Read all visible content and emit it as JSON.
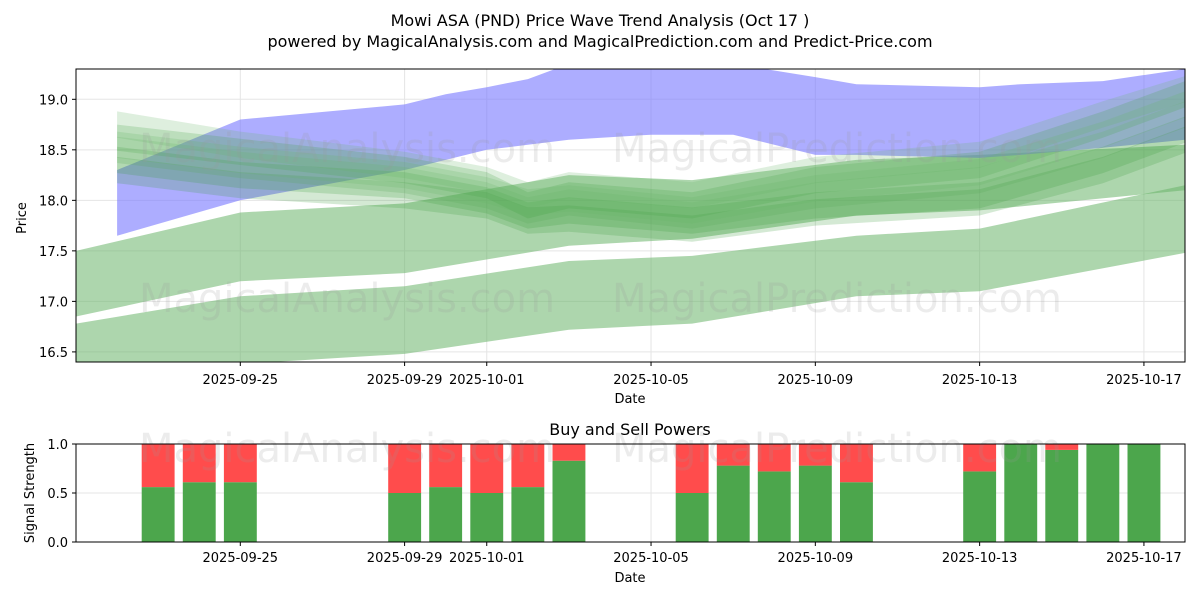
{
  "title_line1": "Mowi ASA (PND) Price Wave Trend Analysis (Oct 17 )",
  "title_line2": "powered by MagicalAnalysis.com and MagicalPrediction.com and Predict-Price.com",
  "watermarks": [
    "MagicalAnalysis.com",
    "MagicalPrediction.com"
  ],
  "chart_data": [
    {
      "type": "area",
      "title": "",
      "xlabel": "Date",
      "ylabel": "Price",
      "x_range": [
        "2025-09-21",
        "2025-10-18"
      ],
      "ylim": [
        16.4,
        19.3
      ],
      "xticks": [
        "2025-09-25",
        "2025-09-29",
        "2025-10-01",
        "2025-10-05",
        "2025-10-09",
        "2025-10-13",
        "2025-10-17"
      ],
      "yticks": [
        16.5,
        17.0,
        17.5,
        18.0,
        18.5,
        19.0
      ],
      "grid": true,
      "colors": {
        "blue": "#7777ff",
        "green": "#6ab56a",
        "green_dark": "#3a9a3a"
      },
      "blue_band": {
        "dates": [
          "2025-09-22",
          "2025-09-25",
          "2025-09-29",
          "2025-09-30",
          "2025-10-01",
          "2025-10-02",
          "2025-10-03",
          "2025-10-05",
          "2025-10-07",
          "2025-10-09",
          "2025-10-10",
          "2025-10-13",
          "2025-10-14",
          "2025-10-16",
          "2025-10-18"
        ],
        "upper": [
          18.3,
          18.8,
          18.95,
          19.05,
          19.12,
          19.2,
          19.35,
          19.35,
          19.35,
          19.22,
          19.15,
          19.12,
          19.15,
          19.18,
          19.3
        ],
        "lower": [
          17.65,
          18.0,
          18.3,
          18.4,
          18.5,
          18.55,
          18.6,
          18.65,
          18.65,
          18.45,
          18.45,
          18.42,
          18.45,
          18.52,
          18.6
        ]
      },
      "green_bands": [
        {
          "dates": [
            "2025-09-21",
            "2025-09-25",
            "2025-09-29",
            "2025-10-03",
            "2025-10-06",
            "2025-10-10",
            "2025-10-13",
            "2025-10-18"
          ],
          "upper": [
            17.5,
            17.88,
            17.97,
            18.25,
            18.2,
            18.4,
            18.45,
            18.55
          ],
          "lower": [
            16.85,
            17.2,
            17.28,
            17.55,
            17.62,
            17.85,
            17.9,
            18.1
          ]
        },
        {
          "dates": [
            "2025-09-21",
            "2025-09-25",
            "2025-09-29",
            "2025-10-03",
            "2025-10-06",
            "2025-10-10",
            "2025-10-13",
            "2025-10-18"
          ],
          "upper": [
            16.78,
            17.05,
            17.15,
            17.4,
            17.45,
            17.65,
            17.72,
            18.15
          ],
          "lower": [
            16.2,
            16.38,
            16.48,
            16.72,
            16.78,
            17.05,
            17.1,
            17.48
          ]
        }
      ],
      "green_waves": [
        {
          "dates": [
            "2025-09-22",
            "2025-09-25",
            "2025-09-29",
            "2025-10-01",
            "2025-10-02",
            "2025-10-03",
            "2025-10-06",
            "2025-10-09",
            "2025-10-13",
            "2025-10-16",
            "2025-10-18"
          ],
          "values": [
            18.62,
            18.48,
            18.3,
            18.15,
            17.95,
            18.05,
            17.95,
            18.2,
            18.35,
            18.75,
            19.05
          ]
        },
        {
          "dates": [
            "2025-09-22",
            "2025-09-25",
            "2025-09-29",
            "2025-10-01",
            "2025-10-02",
            "2025-10-03",
            "2025-10-06",
            "2025-10-09",
            "2025-10-13",
            "2025-10-16",
            "2025-10-18"
          ],
          "values": [
            18.5,
            18.35,
            18.2,
            18.05,
            17.9,
            17.98,
            17.85,
            18.05,
            18.2,
            18.55,
            18.85
          ]
        },
        {
          "dates": [
            "2025-09-22",
            "2025-09-25",
            "2025-09-29",
            "2025-10-01",
            "2025-10-02",
            "2025-10-03",
            "2025-10-06",
            "2025-10-09",
            "2025-10-13",
            "2025-10-16",
            "2025-10-18"
          ],
          "values": [
            18.4,
            18.25,
            18.15,
            18.0,
            17.85,
            17.9,
            17.8,
            17.95,
            18.05,
            18.4,
            18.7
          ]
        },
        {
          "dates": [
            "2025-09-22",
            "2025-09-25",
            "2025-09-29",
            "2025-10-01",
            "2025-10-02",
            "2025-10-03",
            "2025-10-06",
            "2025-10-09",
            "2025-10-13",
            "2025-10-16",
            "2025-10-18"
          ],
          "values": [
            18.75,
            18.55,
            18.35,
            18.2,
            18.05,
            18.15,
            18.05,
            18.3,
            18.45,
            18.85,
            19.1
          ]
        },
        {
          "dates": [
            "2025-09-22",
            "2025-09-25",
            "2025-09-29",
            "2025-10-01",
            "2025-10-02",
            "2025-10-03",
            "2025-10-06",
            "2025-10-09",
            "2025-10-13",
            "2025-10-16",
            "2025-10-18"
          ],
          "values": [
            18.3,
            18.15,
            18.05,
            17.95,
            17.8,
            17.82,
            17.72,
            17.88,
            17.98,
            18.3,
            18.6
          ]
        },
        {
          "dates": [
            "2025-09-22",
            "2025-09-25",
            "2025-09-29",
            "2025-10-01",
            "2025-10-02",
            "2025-10-03",
            "2025-10-06",
            "2025-10-09",
            "2025-10-13",
            "2025-10-16",
            "2025-10-18"
          ],
          "values": [
            18.55,
            18.4,
            18.25,
            18.1,
            17.98,
            18.02,
            17.9,
            18.12,
            18.28,
            18.65,
            18.95
          ]
        }
      ]
    },
    {
      "type": "bar",
      "title": "Buy and Sell Powers",
      "xlabel": "Date",
      "ylabel": "Signal Strength",
      "x_range": [
        "2025-09-21",
        "2025-10-18"
      ],
      "ylim": [
        0,
        1.0
      ],
      "xticks": [
        "2025-09-25",
        "2025-09-29",
        "2025-10-01",
        "2025-10-05",
        "2025-10-09",
        "2025-10-13",
        "2025-10-17"
      ],
      "yticks": [
        0.0,
        0.5,
        1.0
      ],
      "grid": true,
      "colors": {
        "buy": "#4ca64c",
        "sell": "#ff4c4c"
      },
      "dates": [
        "2025-09-23",
        "2025-09-24",
        "2025-09-25",
        "2025-09-29",
        "2025-09-30",
        "2025-10-01",
        "2025-10-02",
        "2025-10-03",
        "2025-10-06",
        "2025-10-07",
        "2025-10-08",
        "2025-10-09",
        "2025-10-10",
        "2025-10-13",
        "2025-10-14",
        "2025-10-15",
        "2025-10-16",
        "2025-10-17"
      ],
      "series": [
        {
          "name": "Buy",
          "values": [
            0.56,
            0.61,
            0.61,
            0.5,
            0.56,
            0.5,
            0.56,
            0.83,
            0.5,
            0.78,
            0.72,
            0.78,
            0.61,
            0.72,
            1.0,
            0.94,
            1.0,
            1.0
          ]
        },
        {
          "name": "Sell",
          "values": [
            0.44,
            0.39,
            0.39,
            0.5,
            0.44,
            0.5,
            0.44,
            0.17,
            0.5,
            0.22,
            0.28,
            0.22,
            0.39,
            0.28,
            0.0,
            0.06,
            0.0,
            0.0
          ]
        }
      ]
    }
  ]
}
